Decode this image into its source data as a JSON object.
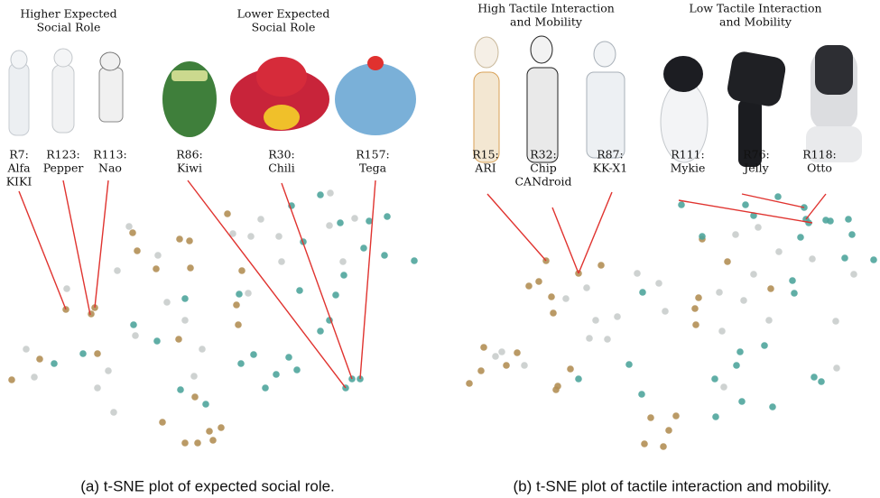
{
  "panels": [
    {
      "groups": [
        {
          "lines": [
            "Higher Expected",
            "Social Role"
          ]
        },
        {
          "lines": [
            "Lower Expected",
            "Social Role"
          ]
        }
      ],
      "robots": [
        {
          "lines": [
            "R7:",
            "Alfa",
            "KIKI"
          ]
        },
        {
          "lines": [
            "R123:",
            "Pepper"
          ]
        },
        {
          "lines": [
            "R113:",
            "Nao"
          ]
        },
        {
          "lines": [
            "R86:",
            "Kiwi"
          ]
        },
        {
          "lines": [
            "R30:",
            "Chili"
          ]
        },
        {
          "lines": [
            "R157:",
            "Tega"
          ]
        }
      ],
      "caption": "(a) t-SNE plot of expected social role."
    },
    {
      "groups": [
        {
          "lines": [
            "High Tactile Interaction",
            "and Mobility"
          ]
        },
        {
          "lines": [
            "Low Tactile Interaction",
            "and Mobility"
          ]
        }
      ],
      "robots": [
        {
          "lines": [
            "R15:",
            "ARI"
          ]
        },
        {
          "lines": [
            "R32:",
            "Chip",
            "CANdroid"
          ]
        },
        {
          "lines": [
            "R87:",
            "KK-X1"
          ]
        },
        {
          "lines": [
            "R111:",
            "Mykie"
          ]
        },
        {
          "lines": [
            "R76:",
            "Jelly"
          ]
        },
        {
          "lines": [
            "R118:",
            "Otto"
          ]
        }
      ],
      "caption": "(b) t-SNE plot of tactile interaction and mobility."
    }
  ],
  "chart_data": [
    {
      "type": "scatter",
      "xlim": [
        0,
        460
      ],
      "ylim": [
        0,
        300
      ],
      "series": [
        {
          "color": "#b38f55",
          "x": [
            68,
            96,
            100,
            8,
            39,
            103,
            142,
            147,
            168,
            194,
            205,
            206,
            247,
            259,
            193,
            211,
            175,
            227,
            240,
            231,
            214,
            200,
            257,
            263
          ],
          "y": [
            157,
            152,
            159,
            79,
            102,
            108,
            242,
            222,
            202,
            235,
            233,
            203,
            263,
            140,
            124,
            60,
            32,
            22,
            26,
            12,
            9,
            9,
            162,
            200
          ]
        },
        {
          "color": "#c9cdcc",
          "x": [
            69,
            24,
            33,
            115,
            103,
            121,
            125,
            138,
            170,
            180,
            200,
            145,
            210,
            253,
            270,
            273,
            219,
            284,
            304,
            307,
            360,
            361,
            388,
            375
          ],
          "y": [
            180,
            113,
            82,
            89,
            70,
            43,
            200,
            249,
            217,
            165,
            145,
            128,
            83,
            241,
            175,
            238,
            113,
            257,
            238,
            210,
            250,
            286,
            258,
            210
          ]
        },
        {
          "color": "#4fa59c",
          "x": [
            350,
            372,
            318,
            404,
            398,
            421,
            424,
            454,
            331,
            327,
            367,
            376,
            200,
            169,
            143,
            87,
            55,
            262,
            276,
            315,
            324,
            350,
            360,
            301,
            289,
            195,
            223,
            394,
            385,
            378,
            260
          ],
          "y": [
            284,
            253,
            272,
            255,
            225,
            217,
            260,
            211,
            232,
            178,
            173,
            195,
            169,
            122,
            140,
            108,
            97,
            97,
            107,
            104,
            90,
            133,
            145,
            85,
            70,
            68,
            52,
            80,
            80,
            70,
            174
          ]
        }
      ]
    },
    {
      "type": "scatter",
      "xlim": [
        0,
        460
      ],
      "ylim": [
        0,
        300
      ],
      "series": [
        {
          "color": "#b38f55",
          "x": [
            90,
            126,
            71,
            82,
            96,
            98,
            21,
            58,
            46,
            18,
            5,
            117,
            103,
            101,
            226,
            220,
            199,
            206,
            234,
            255,
            256,
            259,
            151,
            263,
            291,
            339
          ],
          "y": [
            211,
            197,
            183,
            188,
            171,
            153,
            115,
            109,
            95,
            89,
            75,
            91,
            72,
            68,
            23,
            5,
            8,
            37,
            39,
            158,
            140,
            170,
            206,
            235,
            210,
            180
          ]
        },
        {
          "color": "#c9cdcc",
          "x": [
            41,
            66,
            34,
            112,
            135,
            138,
            158,
            169,
            145,
            215,
            191,
            222,
            282,
            300,
            285,
            309,
            320,
            348,
            287,
            337,
            411,
            412,
            431,
            385,
            325
          ],
          "y": [
            110,
            95,
            105,
            169,
            181,
            125,
            124,
            149,
            145,
            186,
            197,
            155,
            176,
            240,
            133,
            167,
            196,
            221,
            71,
            145,
            144,
            92,
            196,
            213,
            248
          ]
        },
        {
          "color": "#4fa59c",
          "x": [
            240,
            263,
            311,
            320,
            347,
            376,
            378,
            381,
            372,
            400,
            421,
            425,
            429,
            453,
            405,
            363,
            365,
            305,
            332,
            301,
            277,
            307,
            278,
            197,
            182,
            126,
            196,
            387,
            395,
            341
          ],
          "y": [
            273,
            238,
            273,
            261,
            282,
            270,
            257,
            253,
            237,
            256,
            214,
            257,
            240,
            212,
            255,
            189,
            175,
            110,
            117,
            95,
            80,
            55,
            38,
            176,
            96,
            80,
            63,
            82,
            77,
            49
          ]
        }
      ]
    }
  ]
}
